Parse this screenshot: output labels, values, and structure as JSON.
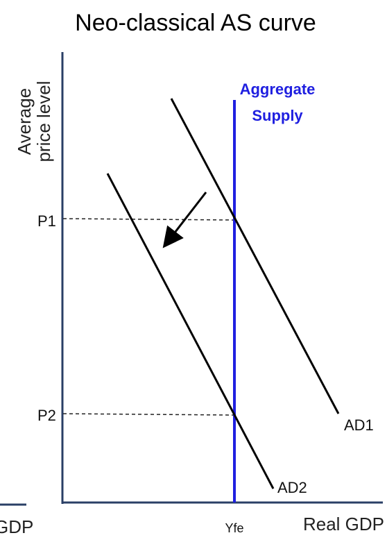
{
  "diagram": {
    "title": "Neo-classical AS curve",
    "y_axis_label": [
      "Average",
      "price level"
    ],
    "x_axis_label": "Real GDP",
    "cut_off_left_label": "GDP",
    "supply_label": [
      "Aggregate",
      "Supply"
    ],
    "price_levels": [
      "P1",
      "P2"
    ],
    "demand_curves": [
      "AD1",
      "AD2"
    ],
    "output_label": "Yfe",
    "colors": {
      "supply": "#1f1fe0",
      "axes": "#2a3f66",
      "curves": "#000000"
    }
  }
}
